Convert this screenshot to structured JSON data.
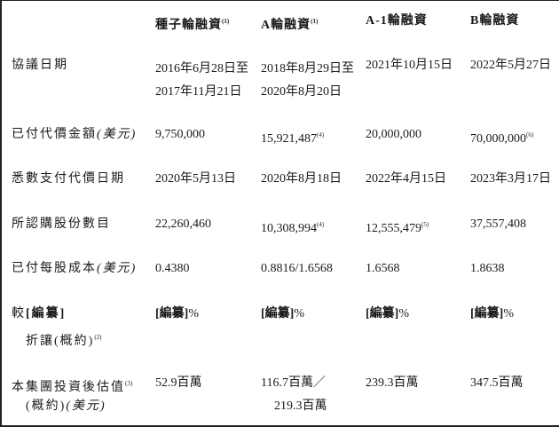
{
  "headers": [
    {
      "label": "種子輪融資",
      "note": "(1)"
    },
    {
      "label": "A輪融資",
      "note": "(1)"
    },
    {
      "label": "A-1輪融資",
      "note": ""
    },
    {
      "label": "B輪融資",
      "note": ""
    }
  ],
  "rows": [
    {
      "label": "協議日期",
      "label_unit": "",
      "label_note": "",
      "cells": [
        {
          "line1": "2016年6月28日至",
          "line2": "2017年11月21日",
          "note": ""
        },
        {
          "line1": "2018年8月29日至",
          "line2": "2020年8月20日",
          "note": ""
        },
        {
          "line1": "2021年10月15日",
          "line2": "",
          "note": ""
        },
        {
          "line1": "2022年5月27日",
          "line2": "",
          "note": ""
        }
      ]
    },
    {
      "label": "已付代價金額",
      "label_unit": "(美元)",
      "label_note": "",
      "cells": [
        {
          "line1": "9,750,000",
          "note": ""
        },
        {
          "line1": "15,921,487",
          "note": "(4)"
        },
        {
          "line1": "20,000,000",
          "note": ""
        },
        {
          "line1": "70,000,000",
          "note": "(6)"
        }
      ]
    },
    {
      "label": "悉數支付代價日期",
      "label_unit": "",
      "label_note": "",
      "cells": [
        {
          "line1": "2020年5月13日",
          "note": ""
        },
        {
          "line1": "2020年8月18日",
          "note": ""
        },
        {
          "line1": "2022年4月15日",
          "note": ""
        },
        {
          "line1": "2023年3月17日",
          "note": ""
        }
      ]
    },
    {
      "label": "所認購股份數目",
      "label_unit": "",
      "label_note": "",
      "cells": [
        {
          "line1": "22,260,460",
          "note": ""
        },
        {
          "line1": "10,308,994",
          "note": "(4)"
        },
        {
          "line1": "12,555,479",
          "note": "(5)"
        },
        {
          "line1": "37,557,408",
          "note": ""
        }
      ]
    },
    {
      "label": "已付每股成本",
      "label_unit": "(美元)",
      "label_note": "",
      "cells": [
        {
          "line1": "0.4380",
          "note": ""
        },
        {
          "line1": "0.8816/1.6568",
          "note": ""
        },
        {
          "line1": "1.6568",
          "note": ""
        },
        {
          "line1": "1.8638",
          "note": ""
        }
      ]
    }
  ],
  "discount_row": {
    "label_prefix": "較",
    "label_redacted": "[編纂]",
    "label_line2": "折讓(概約)",
    "label_note": "(2)",
    "redacted": "[編纂]",
    "suffix": "%"
  },
  "valuation_row": {
    "label": "本集團投資後估值",
    "label_note": "(3)",
    "label_line2": "(概約)",
    "label_unit": "(美元)",
    "cells": [
      {
        "line1": "52.9百萬",
        "line2": ""
      },
      {
        "line1": "116.7百萬／",
        "line2": "219.3百萬"
      },
      {
        "line1": "239.3百萬",
        "line2": ""
      },
      {
        "line1": "347.5百萬",
        "line2": ""
      }
    ]
  }
}
